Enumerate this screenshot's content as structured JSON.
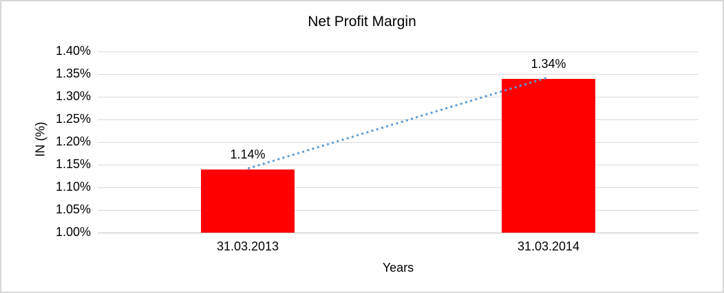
{
  "chart_data": {
    "type": "bar",
    "title": "Net Profit Margin",
    "xlabel": "Years",
    "ylabel": "IN (%)",
    "categories": [
      "31.03.2013",
      "31.03.2014"
    ],
    "values": [
      1.14,
      1.34
    ],
    "value_labels": [
      "1.14%",
      "1.34%"
    ],
    "y_ticks": [
      {
        "value": 1.4,
        "label": "1.40%"
      },
      {
        "value": 1.35,
        "label": "1.35%"
      },
      {
        "value": 1.3,
        "label": "1.30%"
      },
      {
        "value": 1.25,
        "label": "1.25%"
      },
      {
        "value": 1.2,
        "label": "1.20%"
      },
      {
        "value": 1.15,
        "label": "1.15%"
      },
      {
        "value": 1.1,
        "label": "1.10%"
      },
      {
        "value": 1.05,
        "label": "1.05%"
      },
      {
        "value": 1.0,
        "label": "1.00%"
      }
    ],
    "ylim": [
      1.0,
      1.4
    ],
    "grid": true,
    "legend": "none",
    "trendline": {
      "style": "dotted",
      "from_value": 1.14,
      "to_value": 1.34
    },
    "colors": {
      "bar": "#ff0000",
      "trendline": "#5b9bd5",
      "gridline": "#d9d9d9",
      "axis_line": "#c3c3c3",
      "text": "#000000",
      "frame": "#d6d6d6"
    }
  }
}
